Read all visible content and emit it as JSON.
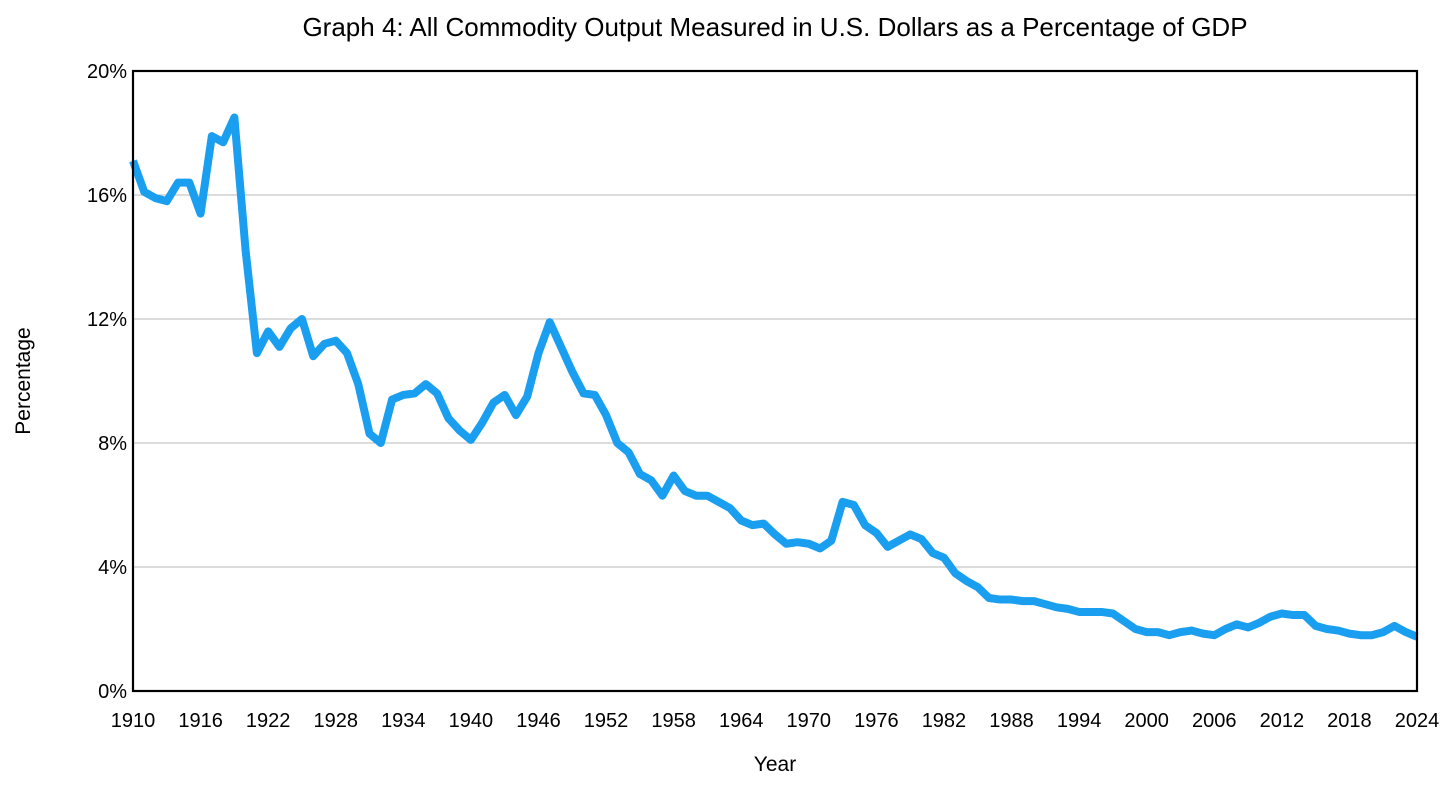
{
  "chart_data": {
    "type": "line",
    "title": "Graph 4: All Commodity Output Measured in U.S. Dollars as a Percentage of GDP",
    "xlabel": "Year",
    "ylabel": "Percentage",
    "xlim": [
      1910,
      2024
    ],
    "ylim": [
      0,
      20
    ],
    "x_ticks": [
      1910,
      1916,
      1922,
      1928,
      1934,
      1940,
      1946,
      1952,
      1958,
      1964,
      1970,
      1976,
      1982,
      1988,
      1994,
      2000,
      2006,
      2012,
      2018,
      2024
    ],
    "y_ticks": [
      0,
      4,
      8,
      12,
      16,
      20
    ],
    "y_tick_labels": [
      "0%",
      "4%",
      "8%",
      "12%",
      "16%",
      "20%"
    ],
    "grid": "horizontal",
    "legend": "none",
    "series": [
      {
        "name": "All Commodity Output (% of GDP)",
        "color": "#1a9ff0",
        "x": [
          1910,
          1911,
          1912,
          1913,
          1914,
          1915,
          1916,
          1917,
          1918,
          1919,
          1920,
          1921,
          1922,
          1923,
          1924,
          1925,
          1926,
          1927,
          1928,
          1929,
          1930,
          1931,
          1932,
          1933,
          1934,
          1935,
          1936,
          1937,
          1938,
          1939,
          1940,
          1941,
          1942,
          1943,
          1944,
          1945,
          1946,
          1947,
          1948,
          1949,
          1950,
          1951,
          1952,
          1953,
          1954,
          1955,
          1956,
          1957,
          1958,
          1959,
          1960,
          1961,
          1962,
          1963,
          1964,
          1965,
          1966,
          1967,
          1968,
          1969,
          1970,
          1971,
          1972,
          1973,
          1974,
          1975,
          1976,
          1977,
          1978,
          1979,
          1980,
          1981,
          1982,
          1983,
          1984,
          1985,
          1986,
          1987,
          1988,
          1989,
          1990,
          1991,
          1992,
          1993,
          1994,
          1995,
          1996,
          1997,
          1998,
          1999,
          2000,
          2001,
          2002,
          2003,
          2004,
          2005,
          2006,
          2007,
          2008,
          2009,
          2010,
          2011,
          2012,
          2013,
          2014,
          2015,
          2016,
          2017,
          2018,
          2019,
          2020,
          2021,
          2022,
          2023,
          2024
        ],
        "values": [
          17.1,
          16.1,
          15.9,
          15.8,
          16.4,
          16.4,
          15.4,
          17.9,
          17.7,
          18.5,
          14.2,
          10.9,
          11.6,
          11.1,
          11.7,
          12.0,
          10.8,
          11.2,
          11.3,
          10.9,
          9.9,
          8.3,
          8.0,
          9.4,
          9.55,
          9.6,
          9.9,
          9.6,
          8.8,
          8.4,
          8.1,
          8.65,
          9.3,
          9.55,
          8.9,
          9.5,
          10.9,
          11.9,
          11.1,
          10.3,
          9.6,
          9.55,
          8.9,
          8.0,
          7.7,
          7.0,
          6.8,
          6.3,
          6.95,
          6.45,
          6.3,
          6.3,
          6.1,
          5.9,
          5.5,
          5.35,
          5.4,
          5.05,
          4.75,
          4.8,
          4.75,
          4.6,
          4.85,
          6.1,
          6.0,
          5.35,
          5.1,
          4.65,
          4.85,
          5.05,
          4.9,
          4.45,
          4.3,
          3.8,
          3.55,
          3.35,
          3.0,
          2.95,
          2.95,
          2.9,
          2.9,
          2.8,
          2.7,
          2.65,
          2.55,
          2.55,
          2.55,
          2.5,
          2.25,
          2.0,
          1.9,
          1.9,
          1.8,
          1.9,
          1.95,
          1.85,
          1.8,
          2.0,
          2.15,
          2.05,
          2.2,
          2.4,
          2.5,
          2.45,
          2.45,
          2.1,
          2.0,
          1.95,
          1.85,
          1.8,
          1.8,
          1.9,
          2.1,
          1.9,
          1.75
        ]
      }
    ]
  }
}
